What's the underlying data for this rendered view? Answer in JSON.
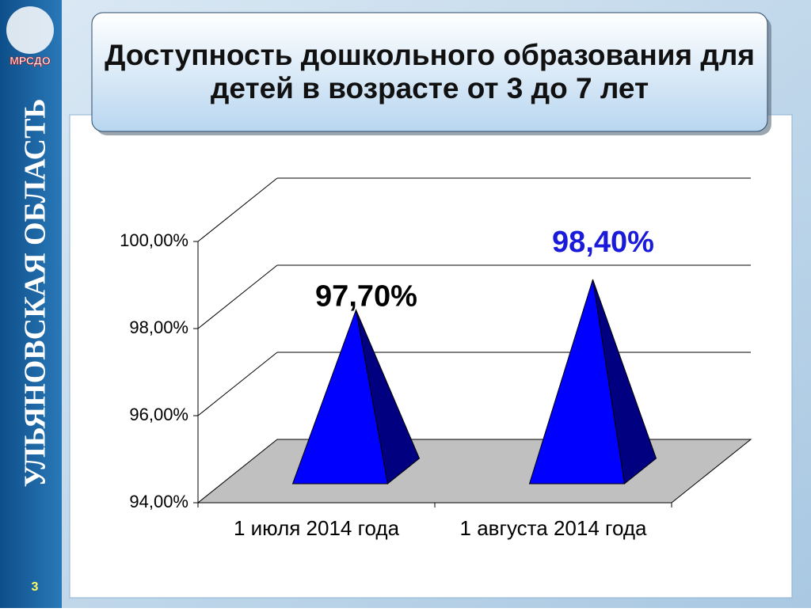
{
  "slide": {
    "region": "УЛЬЯНОВСКАЯ ОБЛАСТЬ",
    "logo": "МРСДО",
    "slide_number": "3"
  },
  "chart_data": {
    "type": "pyramid3d",
    "title": "Доступность дошкольного образования для детей в возрасте от 3 до 7 лет",
    "categories": [
      "1 июля 2014 года",
      "1 августа 2014 года"
    ],
    "values": [
      97.7,
      98.4
    ],
    "value_labels": [
      "97,70%",
      "98,40%"
    ],
    "value_label_colors": [
      "#000000",
      "#1a1adb"
    ],
    "color": "#0000ff",
    "side_color": "#000080",
    "floor_color": "#c0c0c0",
    "ylim": [
      94,
      100
    ],
    "yticks": [
      {
        "value": 94,
        "label": "94,00%"
      },
      {
        "value": 96,
        "label": "96,00%"
      },
      {
        "value": 98,
        "label": "98,00%"
      },
      {
        "value": 100,
        "label": "100,00%"
      }
    ],
    "grid": true
  }
}
